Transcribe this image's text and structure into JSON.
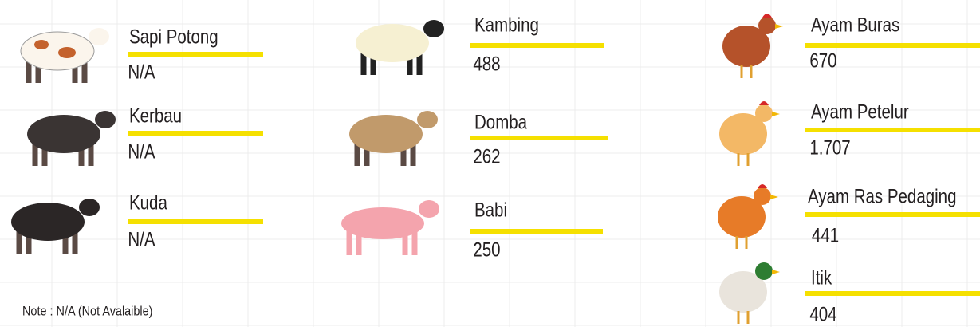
{
  "items": [
    {
      "name": "Sapi Potong",
      "value": "N/A"
    },
    {
      "name": "Kerbau",
      "value": "N/A"
    },
    {
      "name": "Kuda",
      "value": "N/A"
    },
    {
      "name": "Kambing",
      "value": "488"
    },
    {
      "name": "Domba",
      "value": "262"
    },
    {
      "name": "Babi",
      "value": "250"
    },
    {
      "name": "Ayam Buras",
      "value": "670"
    },
    {
      "name": "Ayam Petelur",
      "value": "1.707"
    },
    {
      "name": "Ayam Ras Pedaging",
      "value": "441"
    },
    {
      "name": "Itik",
      "value": "404"
    }
  ],
  "note": "Note : N/A (Not Avalaible)"
}
